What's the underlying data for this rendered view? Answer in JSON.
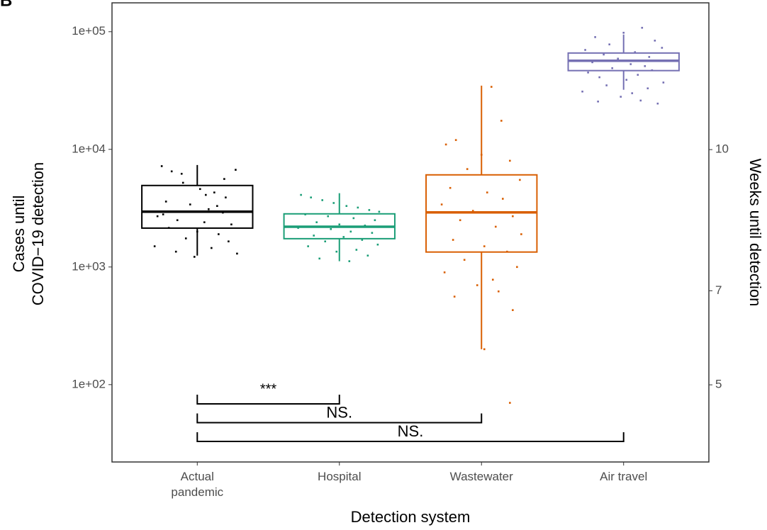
{
  "chart_data": {
    "type": "box",
    "panel_label": "B",
    "x_label": "Detection system",
    "y_label": [
      "Cases until",
      "COVID−19 detection"
    ],
    "y2_label": "Weeks until detection",
    "log_y": true,
    "categories": [
      "Actual\npandemic",
      "Hospital",
      "Wastewater",
      "Air travel"
    ],
    "ylim": [
      22,
      176000
    ],
    "yticks": [
      {
        "value": 100,
        "label": "1e+02"
      },
      {
        "value": 1000,
        "label": "1e+03"
      },
      {
        "value": 10000,
        "label": "1e+04"
      },
      {
        "value": 100000,
        "label": "1e+05"
      }
    ],
    "y2lim": [
      3.36,
      13.12
    ],
    "y2ticks": [
      5,
      7,
      10
    ],
    "series": [
      {
        "name": "Actual pandemic",
        "color": "#000000",
        "box": {
          "low": 1250,
          "q1": 2140,
          "median": 2950,
          "q3": 4930,
          "high": 7360
        },
        "jitter": [
          -0.25,
          -0.18,
          -0.1,
          0.02,
          0.12,
          0.2,
          0.27,
          -0.22,
          -0.05,
          0.08,
          0.18,
          -0.28,
          -0.14,
          0.05,
          0.24,
          -0.2,
          0.0,
          0.15,
          -0.08,
          0.22,
          -0.3,
          0.1,
          -0.15,
          0.28,
          -0.02,
          0.06,
          -0.24,
          0.19,
          -0.11,
          0.14
        ],
        "values": [
          7200,
          6500,
          5200,
          4600,
          4300,
          3900,
          6700,
          3600,
          3400,
          3100,
          2900,
          2700,
          2500,
          2400,
          2300,
          2150,
          2000,
          1900,
          1750,
          1650,
          1500,
          1450,
          1350,
          1300,
          1220,
          4100,
          2800,
          5600,
          6200,
          3300
        ]
      },
      {
        "name": "Hospital",
        "color": "#1b9e77",
        "box": {
          "low": 1120,
          "q1": 1740,
          "median": 2200,
          "q3": 2830,
          "high": 4240
        },
        "jitter": [
          -0.27,
          -0.2,
          -0.12,
          -0.04,
          0.05,
          0.13,
          0.21,
          0.28,
          -0.24,
          -0.08,
          0.1,
          0.25,
          -0.16,
          0.0,
          0.18,
          -0.29,
          -0.06,
          0.08,
          0.23,
          -0.18,
          0.03,
          0.16,
          -0.1,
          0.27,
          -0.22,
          0.12,
          -0.02,
          0.2,
          -0.14,
          0.07
        ],
        "values": [
          4100,
          3900,
          3700,
          3500,
          3300,
          3200,
          3050,
          2950,
          2800,
          2700,
          2600,
          2500,
          2400,
          2300,
          2250,
          2150,
          2100,
          2000,
          1950,
          1850,
          1800,
          1700,
          1650,
          1550,
          1500,
          1400,
          1350,
          1250,
          1180,
          1120
        ]
      },
      {
        "name": "Wastewater",
        "color": "#d95f02",
        "box": {
          "low": 200,
          "q1": 1340,
          "median": 2910,
          "q3": 6070,
          "high": 34800
        },
        "jitter": [
          0.07,
          0.14,
          -0.18,
          -0.25,
          0.0,
          0.2,
          -0.1,
          0.27,
          -0.22,
          0.04,
          0.15,
          -0.28,
          -0.06,
          0.22,
          -0.15,
          0.1,
          0.28,
          -0.2,
          0.02,
          0.18,
          -0.12,
          0.25,
          -0.26,
          0.08,
          -0.03,
          0.12,
          -0.19,
          0.22,
          0.02,
          0.2
        ],
        "values": [
          34000,
          17500,
          12000,
          11000,
          9000,
          8000,
          6800,
          5500,
          4700,
          4300,
          3800,
          3400,
          3000,
          2700,
          2500,
          2200,
          1900,
          1700,
          1500,
          1350,
          1150,
          1000,
          900,
          780,
          700,
          620,
          560,
          430,
          200,
          70
        ]
      },
      {
        "name": "Air travel",
        "color": "#7570b3",
        "box": {
          "low": 32100,
          "q1": 46700,
          "median": 56600,
          "q3": 65900,
          "high": 94600
        },
        "jitter": [
          0.13,
          0.0,
          -0.2,
          0.22,
          -0.1,
          0.27,
          -0.27,
          0.08,
          -0.14,
          0.18,
          -0.04,
          0.25,
          -0.22,
          0.05,
          0.15,
          -0.08,
          0.2,
          -0.25,
          0.1,
          -0.17,
          0.02,
          0.28,
          -0.12,
          0.17,
          -0.29,
          0.06,
          -0.02,
          0.12,
          -0.18,
          0.24
        ],
        "values": [
          108000,
          98000,
          90000,
          84000,
          78000,
          73000,
          70000,
          67000,
          64000,
          61000,
          59000,
          57000,
          55000,
          53000,
          51000,
          49000,
          47000,
          45000,
          43000,
          41000,
          39000,
          37000,
          35000,
          33000,
          31000,
          30000,
          28000,
          26000,
          25500,
          24500
        ]
      }
    ],
    "comparisons": [
      {
        "from": 0,
        "to": 1,
        "label": "***"
      },
      {
        "from": 0,
        "to": 2,
        "label": "NS."
      },
      {
        "from": 0,
        "to": 3,
        "label": "NS."
      }
    ]
  }
}
